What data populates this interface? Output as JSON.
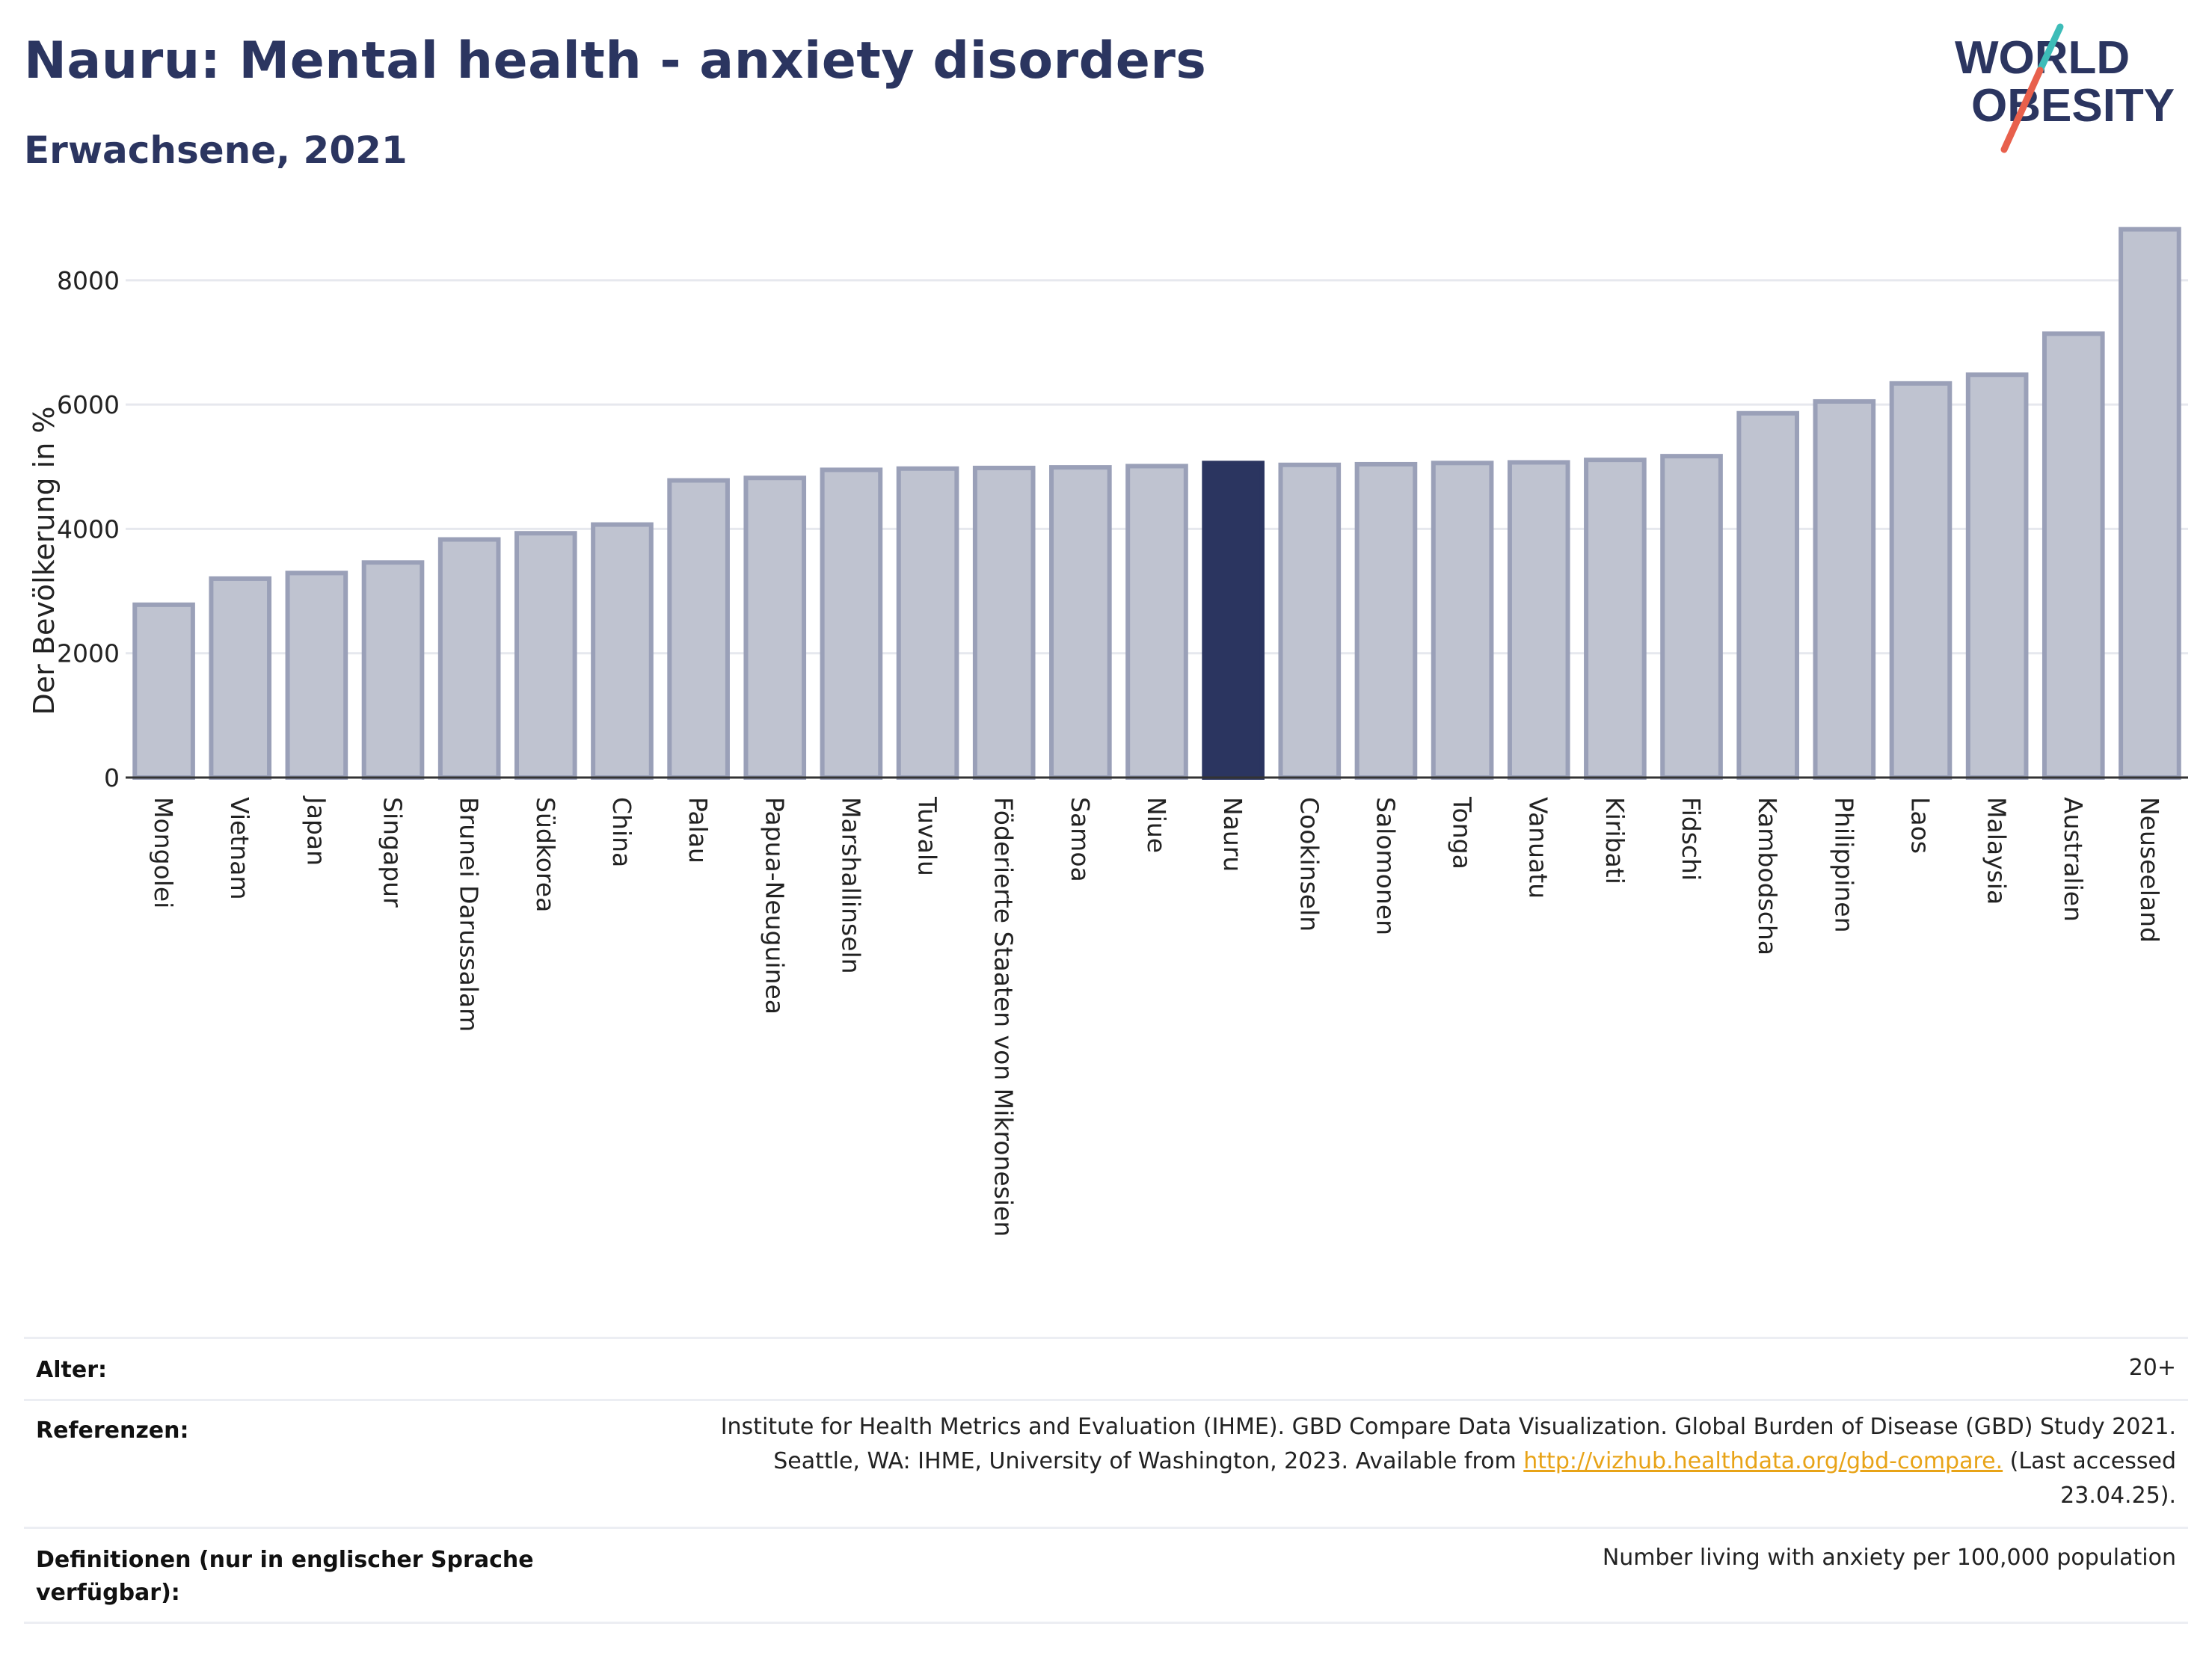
{
  "title": "Nauru: Mental health - anxiety disorders",
  "subtitle": "Erwachsene, 2021",
  "logo": {
    "line1": "WORLD",
    "line2": "OBESITY",
    "accent_teal": "#3dbcb8",
    "accent_red": "#e8604c"
  },
  "colors": {
    "bar_default": "#bfc3d0",
    "bar_border": "#9aa0b8",
    "bar_highlight": "#2b3560",
    "text_dark": "#2b3560"
  },
  "chart_data": {
    "type": "bar",
    "ylabel": "Der Bevölkerung in %",
    "xlabel": "",
    "ylim": [
      0,
      8900
    ],
    "yticks": [
      0,
      2000,
      4000,
      6000,
      8000
    ],
    "grid": true,
    "highlight": "Nauru",
    "categories": [
      "Mongolei",
      "Vietnam",
      "Japan",
      "Singapur",
      "Brunei Darussalam",
      "Südkorea",
      "China",
      "Palau",
      "Papua-Neuguinea",
      "Marshallinseln",
      "Tuvalu",
      "Föderierte Staaten von Mikronesien",
      "Samoa",
      "Niue",
      "Nauru",
      "Cookinseln",
      "Salomonen",
      "Tonga",
      "Vanuatu",
      "Kiribati",
      "Fidschi",
      "Kambodscha",
      "Philippinen",
      "Laos",
      "Malaysia",
      "Australien",
      "Neuseeland"
    ],
    "values": [
      2780,
      3200,
      3290,
      3460,
      3830,
      3930,
      4070,
      4780,
      4820,
      4950,
      4970,
      4980,
      4990,
      5010,
      5060,
      5030,
      5040,
      5060,
      5070,
      5110,
      5170,
      5860,
      6050,
      6340,
      6480,
      7140,
      8820
    ]
  },
  "meta": {
    "age_label": "Alter:",
    "age_value": "20+",
    "ref_label": "Referenzen:",
    "ref_line1": "Institute for Health Metrics and Evaluation (IHME). GBD Compare Data Visualization. Global Burden of Disease (GBD) Study 2021.",
    "ref_line2_pre": "Seattle, WA: IHME, University of Washington, 2023. Available from ",
    "ref_link": "http://vizhub.healthdata.org/gbd-compare.",
    "ref_line2_post": " (Last accessed",
    "ref_line3": "23.04.25).",
    "def_label": "Definitionen (nur in englischer Sprache verfügbar):",
    "def_value": "Number living with anxiety per 100,000 population"
  }
}
